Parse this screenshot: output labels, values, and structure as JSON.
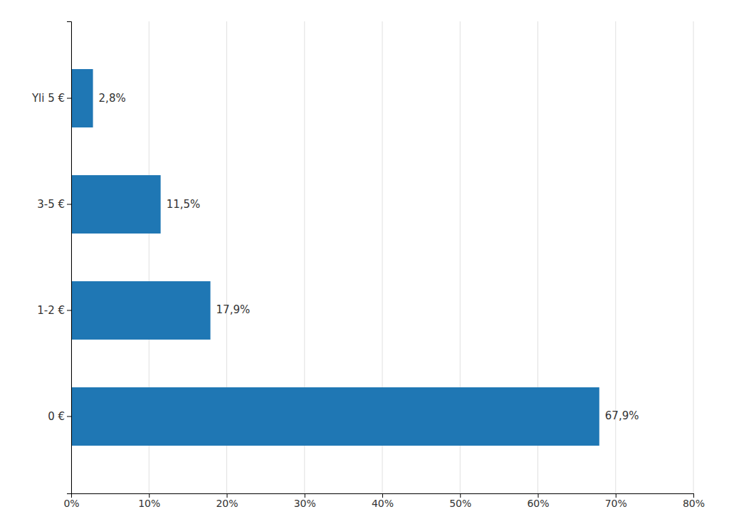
{
  "chart_data": {
    "type": "bar",
    "orientation": "horizontal",
    "categories": [
      "0 €",
      "1-2 €",
      "3-5 €",
      "Yli 5 €"
    ],
    "values": [
      67.9,
      17.9,
      11.5,
      2.8
    ],
    "value_labels": [
      "67,9%",
      "17,9%",
      "11,5%",
      "2,8%"
    ],
    "data_labels": true,
    "xlim": [
      0,
      80
    ],
    "xticks": [
      {
        "value": 0,
        "label": "0%"
      },
      {
        "value": 10,
        "label": "10%"
      },
      {
        "value": 20,
        "label": "20%"
      },
      {
        "value": 30,
        "label": "30%"
      },
      {
        "value": 40,
        "label": "40%"
      },
      {
        "value": 50,
        "label": "50%"
      },
      {
        "value": 60,
        "label": "60%"
      },
      {
        "value": 70,
        "label": "70%"
      },
      {
        "value": 80,
        "label": "80%"
      }
    ],
    "grid": true
  }
}
